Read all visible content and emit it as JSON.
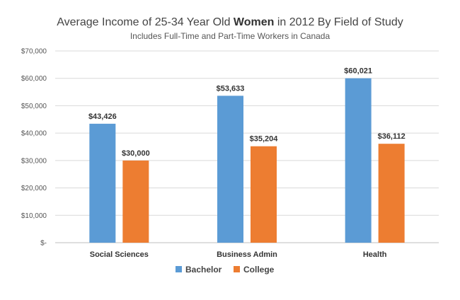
{
  "chart_data": {
    "type": "bar",
    "title": {
      "before": "Average Income of 25-34 Year Old ",
      "emphasis": "Women",
      "after": " in 2012 By Field of Study"
    },
    "subtitle": "Includes Full-Time and Part-Time Workers in Canada",
    "xlabel": "",
    "ylabel": "",
    "categories": [
      "Social Sciences",
      "Business Admin",
      "Health"
    ],
    "series": [
      {
        "name": "Bachelor",
        "color": "#5b9bd5",
        "values": [
          43426,
          53633,
          60021
        ],
        "labels": [
          "$43,426",
          "$53,633",
          "$60,021"
        ]
      },
      {
        "name": "College",
        "color": "#ed7d31",
        "values": [
          30000,
          35204,
          36112
        ],
        "labels": [
          "$30,000",
          "$35,204",
          "$36,112"
        ]
      }
    ],
    "ylim": [
      0,
      70000
    ],
    "yticks": [
      0,
      10000,
      20000,
      30000,
      40000,
      50000,
      60000,
      70000
    ],
    "ytick_labels": [
      "$-",
      "$10,000",
      "$20,000",
      "$30,000",
      "$40,000",
      "$50,000",
      "$60,000",
      "$70,000"
    ],
    "grid": true,
    "legend_position": "bottom"
  }
}
